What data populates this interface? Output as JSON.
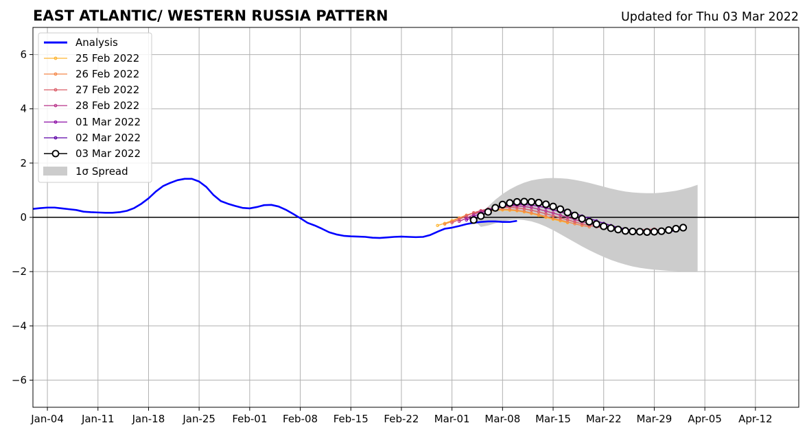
{
  "chart_data": {
    "type": "line",
    "title": "EAST ATLANTIC/ WESTERN RUSSIA PATTERN",
    "subtitle": "Updated for Thu 03 Mar 2022",
    "xlabel": "",
    "ylabel": "",
    "x_range": [
      "2022-01-02",
      "2022-04-18"
    ],
    "ylim": [
      -7,
      7
    ],
    "x_ticks": [
      {
        "date": "2022-01-04",
        "label": "Jan-04"
      },
      {
        "date": "2022-01-11",
        "label": "Jan-11"
      },
      {
        "date": "2022-01-18",
        "label": "Jan-18"
      },
      {
        "date": "2022-01-25",
        "label": "Jan-25"
      },
      {
        "date": "2022-02-01",
        "label": "Feb-01"
      },
      {
        "date": "2022-02-08",
        "label": "Feb-08"
      },
      {
        "date": "2022-02-15",
        "label": "Feb-15"
      },
      {
        "date": "2022-02-22",
        "label": "Feb-22"
      },
      {
        "date": "2022-03-01",
        "label": "Mar-01"
      },
      {
        "date": "2022-03-08",
        "label": "Mar-08"
      },
      {
        "date": "2022-03-15",
        "label": "Mar-15"
      },
      {
        "date": "2022-03-22",
        "label": "Mar-22"
      },
      {
        "date": "2022-03-29",
        "label": "Mar-29"
      },
      {
        "date": "2022-04-05",
        "label": "Apr-05"
      },
      {
        "date": "2022-04-12",
        "label": "Apr-12"
      }
    ],
    "y_ticks": [
      {
        "value": 6,
        "label": "6"
      },
      {
        "value": 4,
        "label": "4"
      },
      {
        "value": 2,
        "label": "2"
      },
      {
        "value": 0,
        "label": "0"
      },
      {
        "value": -2,
        "label": "−2"
      },
      {
        "value": -4,
        "label": "−4"
      },
      {
        "value": -6,
        "label": "−6"
      }
    ],
    "grid": true,
    "zero_line": true,
    "legend_placement": "top-left",
    "analysis": {
      "name": "Analysis",
      "color": "#0000ff",
      "start": "2022-01-02",
      "values": [
        0.31,
        0.34,
        0.36,
        0.36,
        0.33,
        0.3,
        0.27,
        0.21,
        0.19,
        0.18,
        0.17,
        0.17,
        0.19,
        0.24,
        0.34,
        0.5,
        0.7,
        0.95,
        1.15,
        1.27,
        1.37,
        1.42,
        1.42,
        1.32,
        1.12,
        0.82,
        0.6,
        0.5,
        0.42,
        0.35,
        0.33,
        0.38,
        0.45,
        0.46,
        0.4,
        0.28,
        0.13,
        -0.03,
        -0.2,
        -0.3,
        -0.42,
        -0.55,
        -0.63,
        -0.68,
        -0.7,
        -0.71,
        -0.72,
        -0.75,
        -0.76,
        -0.74,
        -0.72,
        -0.71,
        -0.72,
        -0.73,
        -0.72,
        -0.65,
        -0.53,
        -0.42,
        -0.38,
        -0.32,
        -0.25,
        -0.2,
        -0.17,
        -0.15,
        -0.15,
        -0.17,
        -0.17,
        -0.13
      ]
    },
    "forecasts": [
      {
        "name": "25 Feb 2022",
        "color": "#fdb42f",
        "start": "2022-02-27",
        "values": [
          -0.3,
          -0.22,
          -0.12,
          -0.02,
          0.08,
          0.15,
          0.2,
          0.24,
          0.26,
          0.27,
          0.26,
          0.24,
          0.2,
          0.14,
          0.07,
          0.0,
          -0.07,
          -0.13,
          -0.2
        ]
      },
      {
        "name": "26 Feb 2022",
        "color": "#f48849",
        "start": "2022-02-28",
        "values": [
          -0.25,
          -0.15,
          -0.03,
          0.08,
          0.17,
          0.23,
          0.27,
          0.29,
          0.3,
          0.29,
          0.26,
          0.22,
          0.16,
          0.1,
          0.03,
          -0.04,
          -0.1,
          -0.17,
          -0.24,
          -0.3,
          -0.35
        ]
      },
      {
        "name": "27 Feb 2022",
        "color": "#db5c68",
        "start": "2022-03-01",
        "values": [
          -0.2,
          -0.08,
          0.05,
          0.17,
          0.25,
          0.31,
          0.35,
          0.37,
          0.37,
          0.35,
          0.31,
          0.26,
          0.2,
          0.13,
          0.06,
          -0.02,
          -0.09,
          -0.17,
          -0.24,
          -0.3,
          -0.35,
          -0.39,
          -0.42,
          -0.44,
          -0.45,
          -0.46,
          -0.46,
          -0.45,
          -0.43
        ]
      },
      {
        "name": "28 Feb 2022",
        "color": "#b83289",
        "start": "2022-03-02",
        "values": [
          -0.15,
          -0.03,
          0.1,
          0.22,
          0.3,
          0.36,
          0.4,
          0.42,
          0.42,
          0.4,
          0.36,
          0.3,
          0.23,
          0.16,
          0.08,
          0.0,
          -0.08,
          -0.16,
          -0.23,
          -0.3,
          -0.36,
          -0.41,
          -0.44,
          -0.46,
          -0.47,
          -0.48,
          -0.48,
          -0.47,
          -0.45
        ]
      },
      {
        "name": "01 Mar 2022",
        "color": "#8b0aa5",
        "start": "2022-03-03",
        "values": [
          -0.1,
          0.03,
          0.16,
          0.27,
          0.35,
          0.41,
          0.45,
          0.47,
          0.47,
          0.45,
          0.41,
          0.35,
          0.28,
          0.2,
          0.12,
          0.03,
          -0.06,
          -0.14,
          -0.22,
          -0.3,
          -0.36,
          -0.41,
          -0.45,
          -0.48,
          -0.5,
          -0.51,
          -0.51,
          -0.5,
          -0.48
        ]
      },
      {
        "name": "02 Mar 2022",
        "color": "#5c01a6",
        "start": "2022-03-04",
        "values": [
          -0.05,
          0.08,
          0.21,
          0.32,
          0.4,
          0.46,
          0.5,
          0.52,
          0.52,
          0.5,
          0.46,
          0.4,
          0.32,
          0.23,
          0.14,
          0.05,
          -0.04,
          -0.13,
          -0.22,
          -0.3,
          -0.37,
          -0.43,
          -0.47,
          -0.5,
          -0.52,
          -0.53,
          -0.53,
          -0.52,
          -0.5
        ]
      }
    ],
    "latest": {
      "name": "03 Mar 2022",
      "color": "#000000",
      "start": "2022-03-04",
      "values": [
        -0.1,
        0.05,
        0.2,
        0.35,
        0.47,
        0.53,
        0.57,
        0.58,
        0.57,
        0.54,
        0.48,
        0.4,
        0.3,
        0.18,
        0.07,
        -0.05,
        -0.16,
        -0.25,
        -0.33,
        -0.4,
        -0.45,
        -0.5,
        -0.52,
        -0.53,
        -0.54,
        -0.53,
        -0.51,
        -0.47,
        -0.42,
        -0.38
      ]
    },
    "spread": {
      "name": "1σ Spread",
      "color": "#cccccc",
      "start": "2022-03-04",
      "upper": [
        -0.1,
        0.15,
        0.4,
        0.65,
        0.86,
        1.03,
        1.17,
        1.28,
        1.36,
        1.41,
        1.44,
        1.45,
        1.44,
        1.42,
        1.38,
        1.33,
        1.27,
        1.2,
        1.13,
        1.06,
        1.0,
        0.95,
        0.92,
        0.9,
        0.89,
        0.89,
        0.91,
        0.94,
        0.98,
        1.04,
        1.11,
        1.2
      ],
      "lower": [
        -0.1,
        -0.35,
        -0.3,
        -0.22,
        -0.15,
        -0.1,
        -0.08,
        -0.1,
        -0.15,
        -0.23,
        -0.34,
        -0.47,
        -0.62,
        -0.77,
        -0.92,
        -1.07,
        -1.21,
        -1.34,
        -1.46,
        -1.57,
        -1.66,
        -1.74,
        -1.81,
        -1.86,
        -1.9,
        -1.93,
        -1.95,
        -1.97,
        -1.98,
        -1.99,
        -1.99,
        -1.98
      ]
    }
  }
}
